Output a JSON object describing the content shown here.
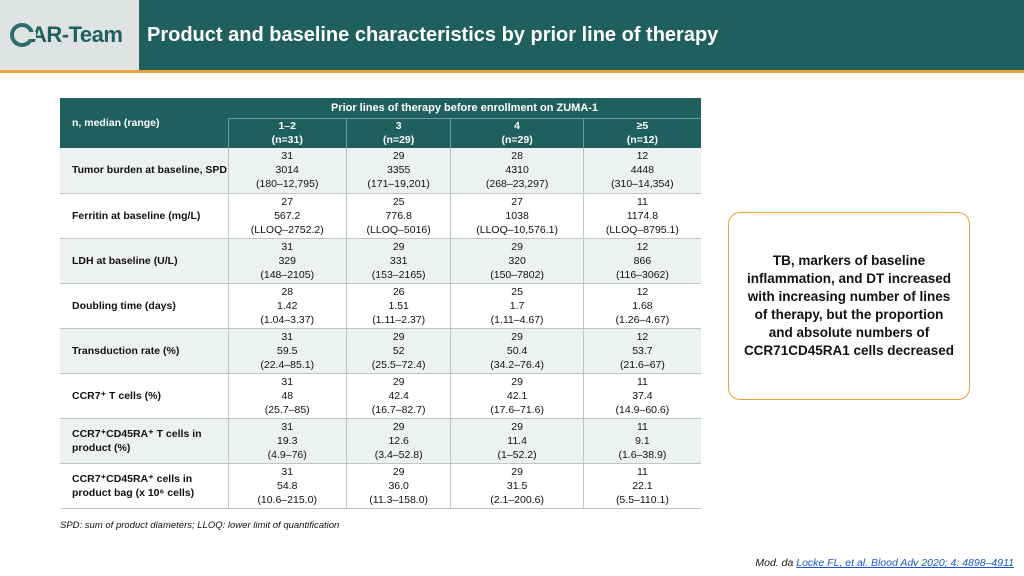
{
  "header": {
    "logo_text": "AR-Team",
    "title": "Product and baseline characteristics by prior line of therapy"
  },
  "colors": {
    "primary": "#1f5f5d",
    "accent": "#e8a13b",
    "link": "#1a55c8"
  },
  "table": {
    "corner_label": "n, median (range)",
    "group_header": "Prior lines of therapy before enrollment on ZUMA-1",
    "columns": [
      {
        "label": "1–2",
        "n": "(n=31)"
      },
      {
        "label": "3",
        "n": "(n=29)"
      },
      {
        "label": "4",
        "n": "(n=29)"
      },
      {
        "label": "≥5",
        "n": "(n=12)"
      }
    ],
    "rows": [
      {
        "label": "Tumor burden at baseline, SPD",
        "cells": [
          [
            "31",
            "3014",
            "(180–12,795)"
          ],
          [
            "29",
            "3355",
            "(171–19,201)"
          ],
          [
            "28",
            "4310",
            "(268–23,297)"
          ],
          [
            "12",
            "4448",
            "(310–14,354)"
          ]
        ]
      },
      {
        "label": "Ferritin at baseline (mg/L)",
        "cells": [
          [
            "27",
            "567.2",
            "(LLOQ–2752.2)"
          ],
          [
            "25",
            "776.8",
            "(LLOQ–5016)"
          ],
          [
            "27",
            "1038",
            "(LLOQ–10,576.1)"
          ],
          [
            "11",
            "1174.8",
            "(LLOQ–8795.1)"
          ]
        ]
      },
      {
        "label": "LDH at baseline (U/L)",
        "cells": [
          [
            "31",
            "329",
            "(148–2105)"
          ],
          [
            "29",
            "331",
            "(153–2165)"
          ],
          [
            "29",
            "320",
            "(150–7802)"
          ],
          [
            "12",
            "866",
            "(116–3062)"
          ]
        ]
      },
      {
        "label": "Doubling time (days)",
        "cells": [
          [
            "28",
            "1.42",
            "(1.04–3.37)"
          ],
          [
            "26",
            "1.51",
            "(1.11–2.37)"
          ],
          [
            "25",
            "1.7",
            "(1.11–4.67)"
          ],
          [
            "12",
            "1.68",
            "(1.26–4.67)"
          ]
        ]
      },
      {
        "label": "Transduction rate (%)",
        "cells": [
          [
            "31",
            "59.5",
            "(22.4–85.1)"
          ],
          [
            "29",
            "52",
            "(25.5–72.4)"
          ],
          [
            "29",
            "50.4",
            "(34.2–76.4)"
          ],
          [
            "12",
            "53.7",
            "(21.6–67)"
          ]
        ]
      },
      {
        "label": "CCR7⁺ T cells (%)",
        "cells": [
          [
            "31",
            "48",
            "(25.7–85)"
          ],
          [
            "29",
            "42.4",
            "(16.7–82.7)"
          ],
          [
            "29",
            "42.1",
            "(17.6–71.6)"
          ],
          [
            "11",
            "37.4",
            "(14.9–60.6)"
          ]
        ]
      },
      {
        "label": "CCR7⁺CD45RA⁺ T cells in product (%)",
        "cells": [
          [
            "31",
            "19.3",
            "(4.9–76)"
          ],
          [
            "29",
            "12.6",
            "(3.4–52.8)"
          ],
          [
            "29",
            "11.4",
            "(1–52.2)"
          ],
          [
            "11",
            "9.1",
            "(1.6–38.9)"
          ]
        ]
      },
      {
        "label": "CCR7⁺CD45RA⁺ cells in product bag (x 10⁶ cells)",
        "cells": [
          [
            "31",
            "54.8",
            "(10.6–215.0)"
          ],
          [
            "29",
            "36.0",
            "(11.3–158.0)"
          ],
          [
            "29",
            "31.5",
            "(2.1–200.6)"
          ],
          [
            "11",
            "22.1",
            "(5.5–110.1)"
          ]
        ]
      }
    ]
  },
  "footnote": "SPD: sum of product diameters; LLOQ: lower limit of quantification",
  "callout": "TB, markers of baseline inflammation, and DT increased with increasing number of lines of therapy, but the proportion and absolute numbers of CCR71CD45RA1 cells decreased",
  "reference": {
    "prefix": "Mod. da ",
    "link_text": "Locke FL, et al. Blood Adv 2020; 4: 4898–4911"
  }
}
